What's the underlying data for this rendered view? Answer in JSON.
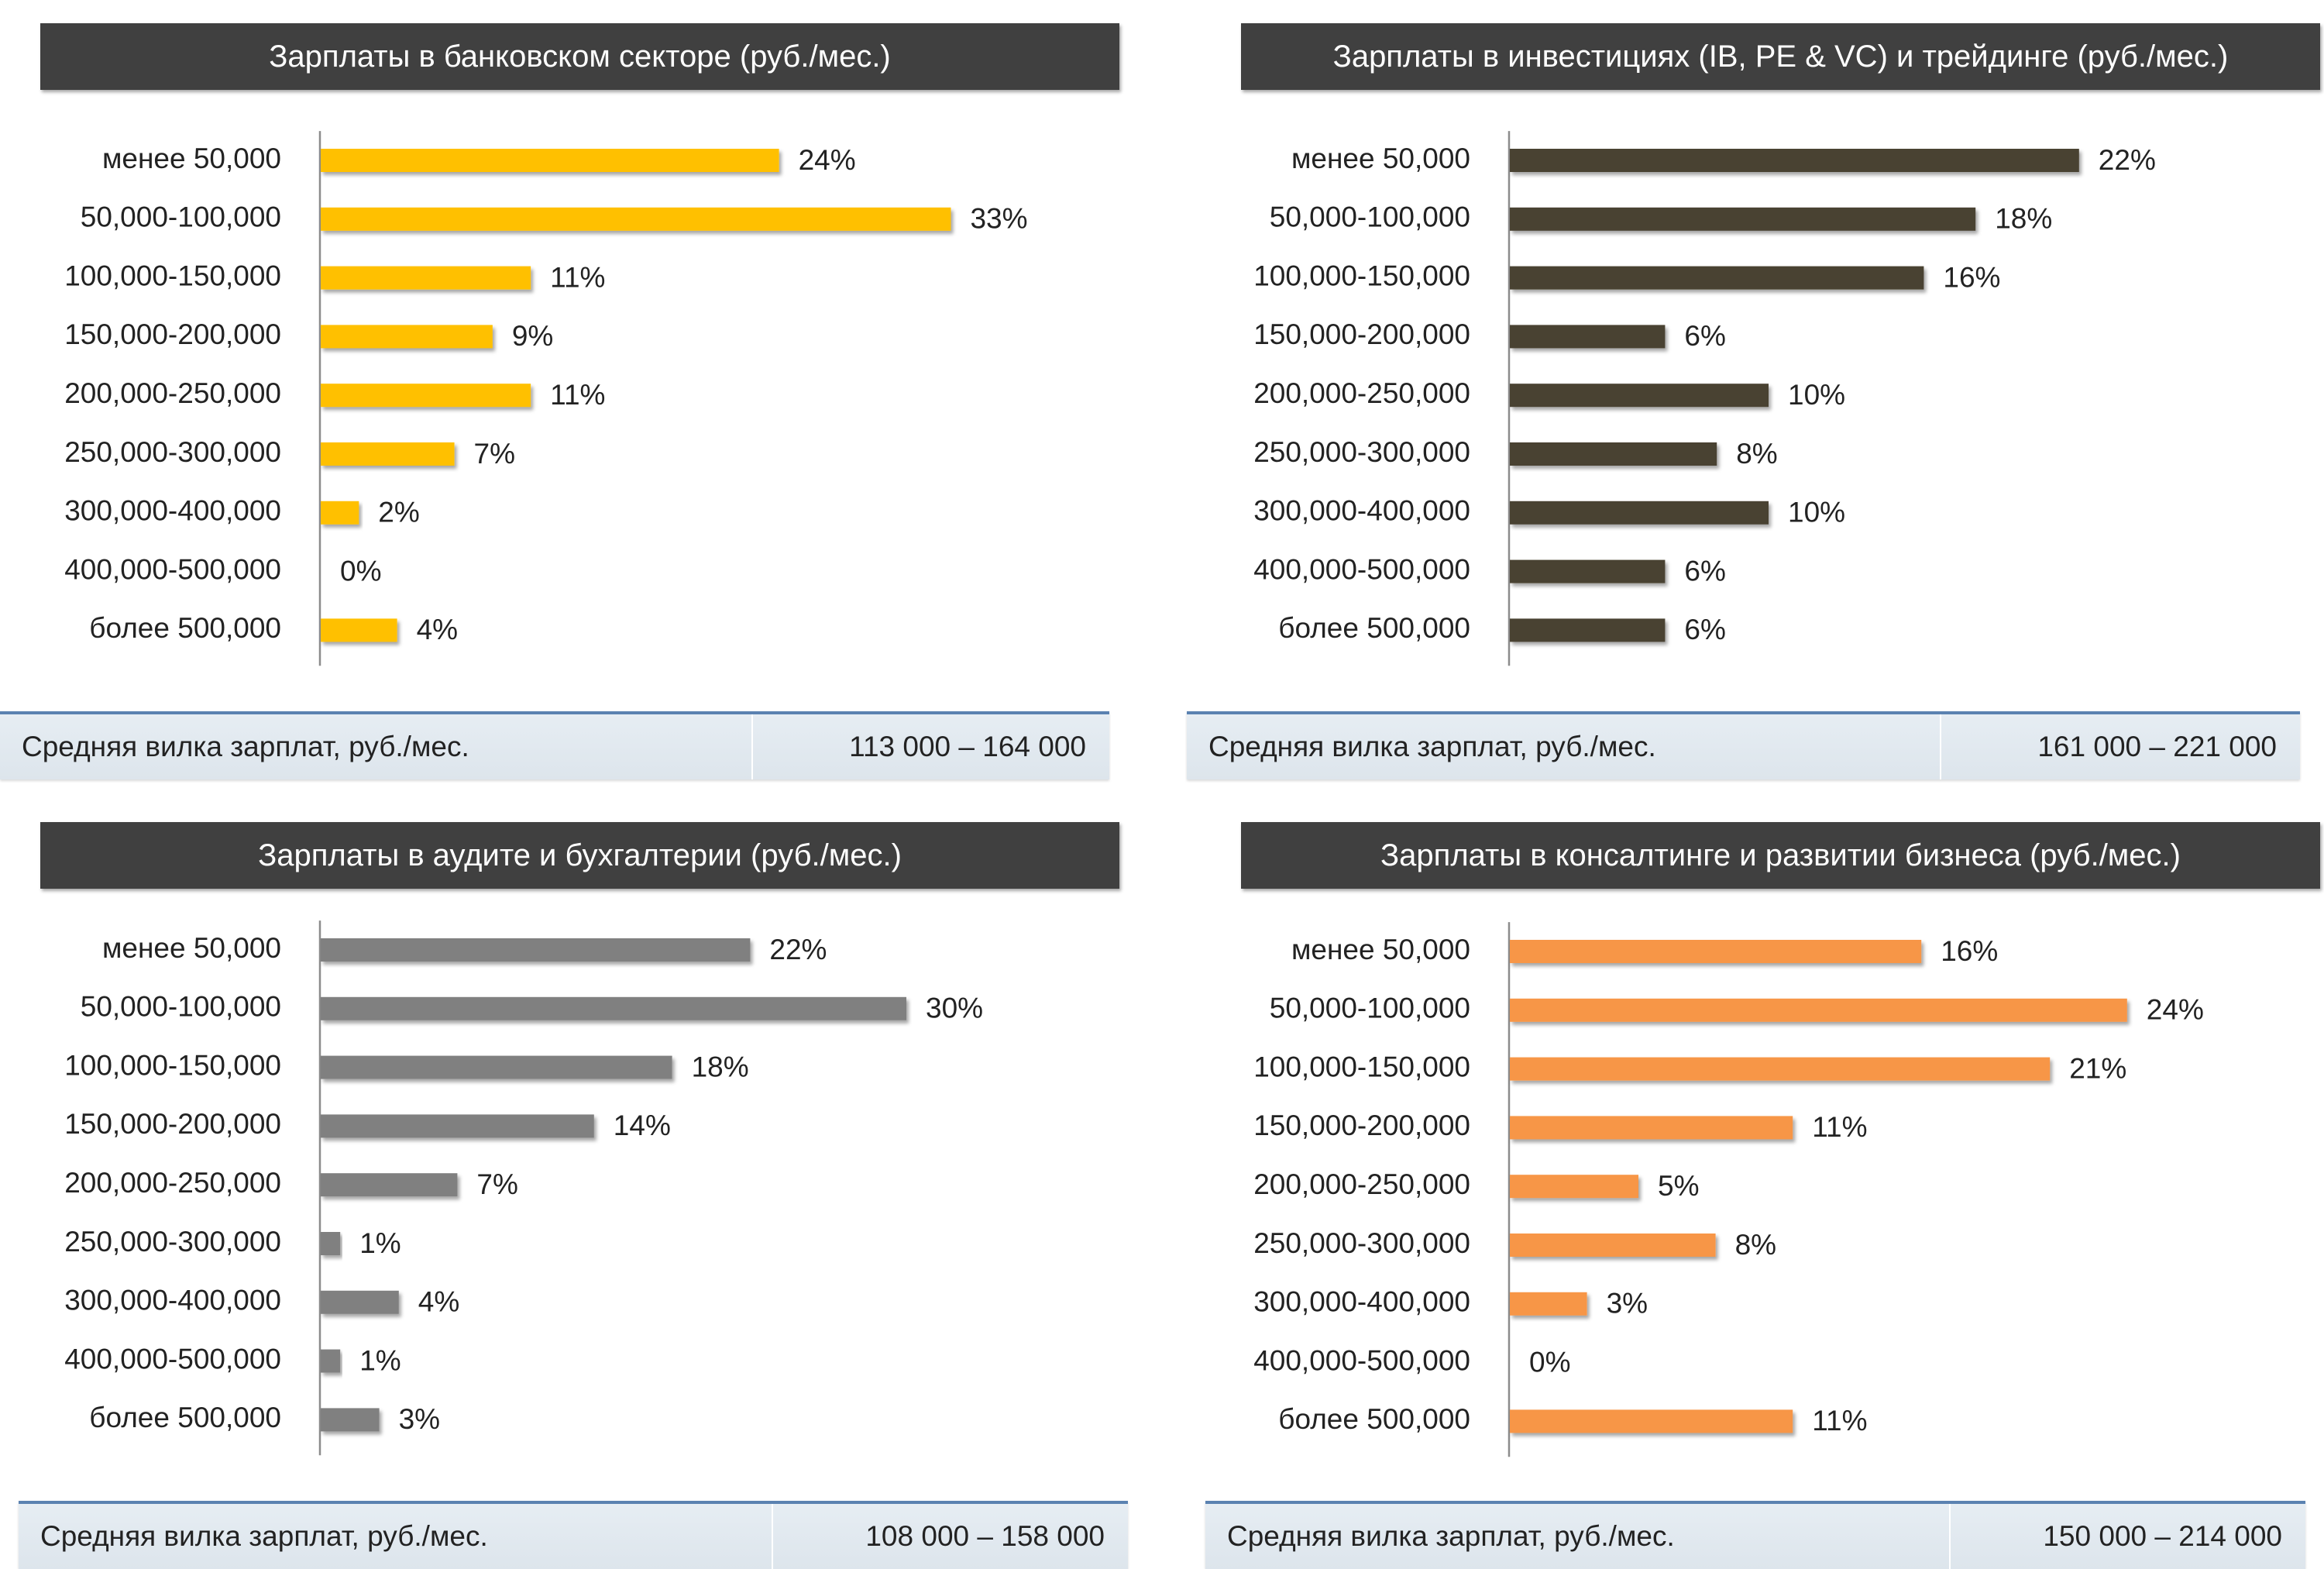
{
  "panels": [
    {
      "title": "Зарплаты в банковском секторе (руб./мес.)",
      "footer_label": "Средняя вилка зарплат, руб./мес.",
      "footer_value": "113 000 – 164 000"
    },
    {
      "title": "Зарплаты в инвестициях (IB, PE & VC) и трейдинге (руб./мес.)",
      "footer_label": "Средняя вилка зарплат, руб./мес.",
      "footer_value": "161 000 – 221 000"
    },
    {
      "title": "Зарплаты в аудите и бухгалтерии (руб./мес.)",
      "footer_label": "Средняя вилка зарплат, руб./мес.",
      "footer_value": "108 000 – 158 000"
    },
    {
      "title": "Зарплаты в консалтинге и развитии бизнеса (руб./мес.)",
      "footer_label": "Средняя вилка зарплат, руб./мес.",
      "footer_value": "150 000 – 214 000"
    }
  ],
  "chart_data": [
    {
      "type": "bar",
      "orientation": "horizontal",
      "title": "Зарплаты в банковском секторе (руб./мес.)",
      "color": "#FFC000",
      "categories": [
        "менее 50,000",
        "50,000-100,000",
        "100,000-150,000",
        "150,000-200,000",
        "200,000-250,000",
        "250,000-300,000",
        "300,000-400,000",
        "400,000-500,000",
        "более 500,000"
      ],
      "values": [
        24,
        33,
        11,
        9,
        11,
        7,
        2,
        0,
        4
      ],
      "value_labels": [
        "24%",
        "33%",
        "11%",
        "9%",
        "11%",
        "7%",
        "2%",
        "0%",
        "4%"
      ]
    },
    {
      "type": "bar",
      "orientation": "horizontal",
      "title": "Зарплаты в инвестициях (IB, PE & VC) и трейдинге (руб./мес.)",
      "color": "#4A4330",
      "categories": [
        "менее 50,000",
        "50,000-100,000",
        "100,000-150,000",
        "150,000-200,000",
        "200,000-250,000",
        "250,000-300,000",
        "300,000-400,000",
        "400,000-500,000",
        "более 500,000"
      ],
      "values": [
        22,
        18,
        16,
        6,
        10,
        8,
        10,
        6,
        6
      ],
      "value_labels": [
        "22%",
        "18%",
        "16%",
        "6%",
        "10%",
        "8%",
        "10%",
        "6%",
        "6%"
      ]
    },
    {
      "type": "bar",
      "orientation": "horizontal",
      "title": "Зарплаты в аудите и бухгалтерии (руб./мес.)",
      "color": "#808080",
      "categories": [
        "менее 50,000",
        "50,000-100,000",
        "100,000-150,000",
        "150,000-200,000",
        "200,000-250,000",
        "250,000-300,000",
        "300,000-400,000",
        "400,000-500,000",
        "более 500,000"
      ],
      "values": [
        22,
        30,
        18,
        14,
        7,
        1,
        4,
        1,
        3
      ],
      "value_labels": [
        "22%",
        "30%",
        "18%",
        "14%",
        "7%",
        "1%",
        "4%",
        "1%",
        "3%"
      ]
    },
    {
      "type": "bar",
      "orientation": "horizontal",
      "title": "Зарплаты в консалтинге и развитии бизнеса (руб./мес.)",
      "color": "#F79646",
      "categories": [
        "менее 50,000",
        "50,000-100,000",
        "100,000-150,000",
        "150,000-200,000",
        "200,000-250,000",
        "250,000-300,000",
        "300,000-400,000",
        "400,000-500,000",
        "более 500,000"
      ],
      "values": [
        16,
        24,
        21,
        11,
        5,
        8,
        3,
        0,
        11
      ],
      "value_labels": [
        "16%",
        "24%",
        "21%",
        "11%",
        "5%",
        "8%",
        "3%",
        "0%",
        "11%"
      ]
    }
  ]
}
